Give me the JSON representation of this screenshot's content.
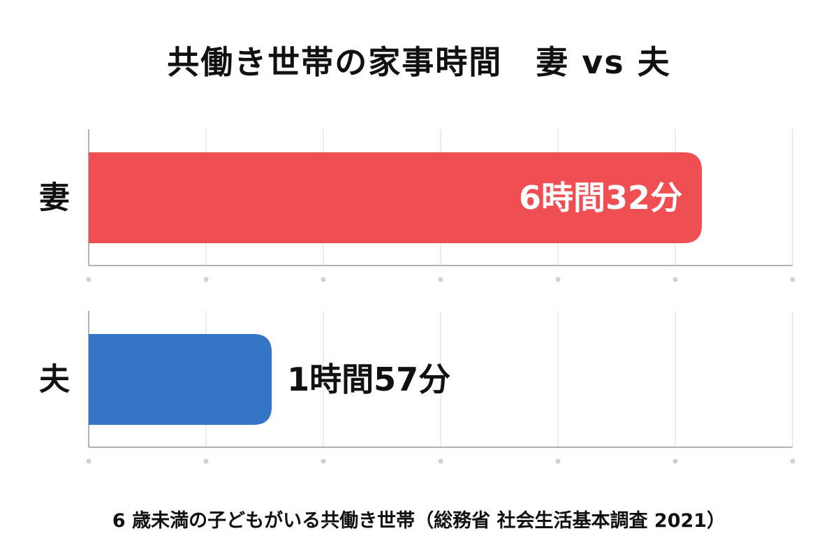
{
  "chart_data": {
    "type": "bar",
    "orientation": "horizontal",
    "title": "共働き世帯の家事時間　妻 vs 夫",
    "categories": [
      "妻",
      "夫"
    ],
    "values": [
      392,
      117
    ],
    "value_unit": "minutes",
    "data_labels": [
      "6時間32分",
      "1時間57分"
    ],
    "colors": [
      "#EF4F52",
      "#3575C6"
    ],
    "xlim": [
      0,
      450
    ],
    "grid": true,
    "legend": "none",
    "footnote": "6 歳未満の子どもがいる共働き世帯（総務省 社会生活基本調査 2021）"
  }
}
